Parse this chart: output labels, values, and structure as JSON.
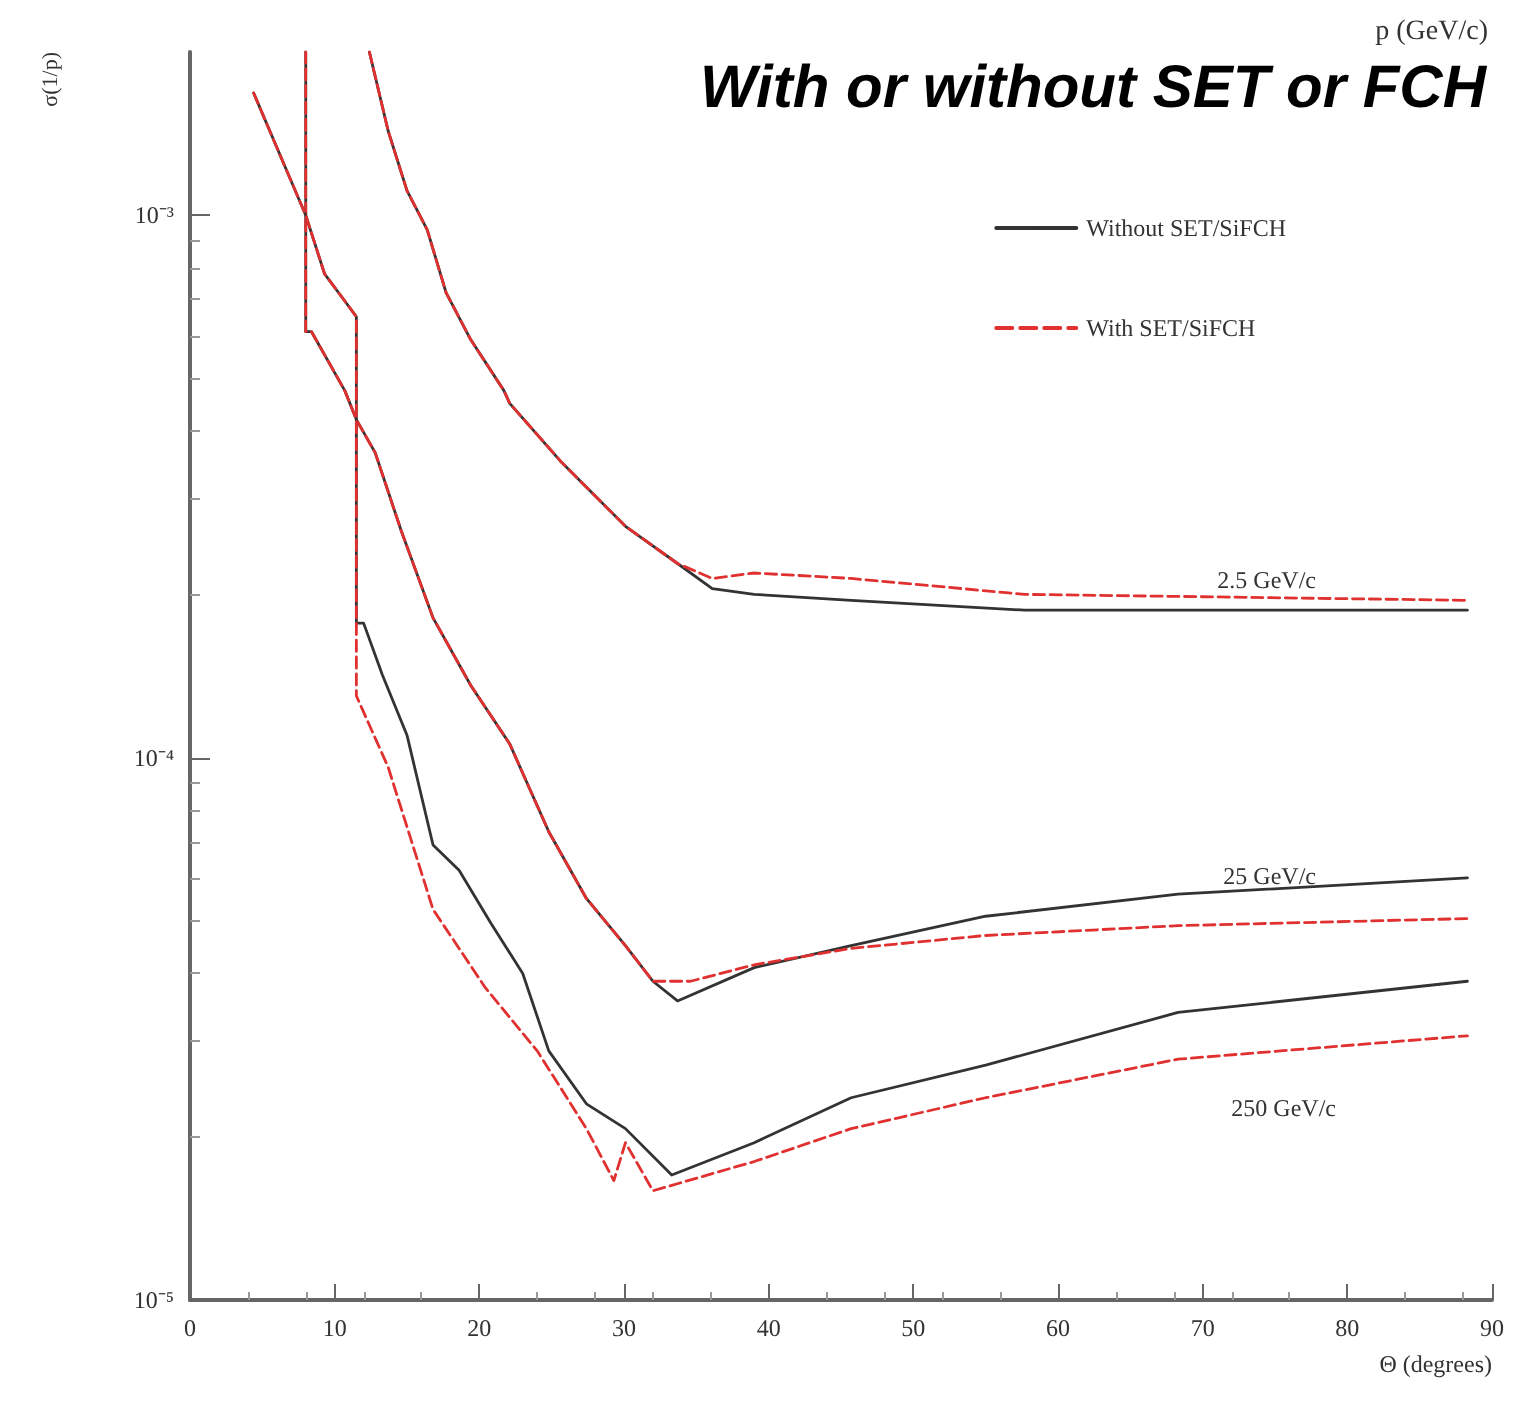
{
  "chart_data": {
    "type": "line",
    "title": "With or without SET or FCH",
    "xlabel": "Θ (degrees)",
    "ylabel": "σ(1/p)",
    "xlim": [
      0,
      90
    ],
    "xticks": [
      0,
      10,
      20,
      30,
      40,
      50,
      60,
      70,
      80,
      90
    ],
    "ylim": [
      1e-05,
      0.002
    ],
    "log": true,
    "yticks": [
      {
        "value": 1e-05,
        "label": "10⁻⁵"
      },
      {
        "value": 0.0001,
        "label": "10⁻⁴"
      },
      {
        "value": 0.001,
        "label": "10⁻³"
      }
    ],
    "grid": false,
    "legend": "top right",
    "marker": "none",
    "annotations": [
      "p (GeV/c)",
      "2.5 GeV/c",
      "25 GeV/c",
      "250 GeV/c"
    ],
    "series": [
      {
        "name": "Without SET/SiFCH",
        "color": "#333333",
        "line_style": "solid",
        "x": [
          12.4,
          13.7,
          15.0,
          16.4,
          17.7,
          19.4,
          21.7,
          22.1,
          25.7,
          30.1,
          33.7,
          36.1,
          39.0,
          45.7,
          57.7,
          88.3
        ],
        "values": [
          0.002,
          0.00143,
          0.00111,
          0.00094,
          0.00072,
          0.00059,
          0.000475,
          0.00045,
          0.00035,
          0.000267,
          0.000228,
          0.000205,
          0.0002,
          0.000195,
          0.000187,
          0.000187
        ]
      },
      {
        "name": "With SET/SiFCH",
        "color": "#e03030",
        "line_style": "dashed",
        "x": [
          12.4,
          13.7,
          15.0,
          16.4,
          17.7,
          19.4,
          21.7,
          22.1,
          25.7,
          30.1,
          33.7,
          36.1,
          39.0,
          45.7,
          57.7,
          88.3
        ],
        "values": [
          0.002,
          0.00143,
          0.00111,
          0.00094,
          0.00072,
          0.00059,
          0.000475,
          0.00045,
          0.00035,
          0.000267,
          0.000228,
          0.000214,
          0.000219,
          0.000214,
          0.0002,
          0.000195
        ]
      },
      {
        "color": "#333333",
        "line_style": "solid",
        "x": [
          8.0,
          8.0,
          8.4,
          10.7,
          11.5,
          12.8,
          14.6,
          16.8,
          19.4,
          22.1,
          24.8,
          27.4,
          30.1,
          32.0,
          33.7,
          39.0,
          45.7,
          55.0,
          68.3,
          88.3
        ],
        "values": [
          0.002,
          0.00061,
          0.00061,
          0.000475,
          0.00042,
          0.000365,
          0.000262,
          0.000181,
          0.000136,
          0.000106,
          7.3e-05,
          5.5e-05,
          4.5e-05,
          3.87e-05,
          3.56e-05,
          4.1e-05,
          4.5e-05,
          5.1e-05,
          5.6e-05,
          6e-05
        ]
      },
      {
        "color": "#e03030",
        "line_style": "dashed",
        "x": [
          8.0,
          8.0,
          8.4,
          10.7,
          11.5,
          12.8,
          14.6,
          16.8,
          19.4,
          22.1,
          24.8,
          27.4,
          30.1,
          32.0,
          34.6,
          39.0,
          45.7,
          55.0,
          68.3,
          88.3
        ],
        "values": [
          0.002,
          0.00061,
          0.00061,
          0.000475,
          0.00042,
          0.000365,
          0.000262,
          0.000181,
          0.000136,
          0.000106,
          7.3e-05,
          5.5e-05,
          4.5e-05,
          3.87e-05,
          3.87e-05,
          4.15e-05,
          4.45e-05,
          4.7e-05,
          4.9e-05,
          5.05e-05
        ]
      },
      {
        "color": "#333333",
        "line_style": "solid",
        "x": [
          4.4,
          8.0,
          9.3,
          10.7,
          11.5,
          11.5,
          12.0,
          13.3,
          15.0,
          16.8,
          18.6,
          20.8,
          23.0,
          24.8,
          27.4,
          30.1,
          33.3,
          39.0,
          45.7,
          55.0,
          68.3,
          88.3
        ],
        "values": [
          0.00168,
          0.001,
          0.00078,
          0.000695,
          0.00065,
          0.000177,
          0.000177,
          0.000142,
          0.00011,
          6.9e-05,
          6.2e-05,
          4.95e-05,
          4e-05,
          2.88e-05,
          2.3e-05,
          2.07e-05,
          1.7e-05,
          1.95e-05,
          2.36e-05,
          2.71e-05,
          3.39e-05,
          3.87e-05
        ]
      },
      {
        "color": "#e03030",
        "line_style": "dashed",
        "x": [
          4.4,
          8.0,
          9.3,
          10.7,
          11.5,
          11.5,
          13.7,
          16.8,
          20.4,
          24.0,
          27.4,
          29.3,
          30.1,
          32.0,
          39.0,
          45.7,
          55.0,
          68.3,
          88.3
        ],
        "values": [
          0.00168,
          0.001,
          0.00078,
          0.000695,
          0.00065,
          0.00013,
          9.6e-05,
          5.25e-05,
          3.77e-05,
          2.88e-05,
          2.07e-05,
          1.66e-05,
          1.95e-05,
          1.59e-05,
          1.8e-05,
          2.07e-05,
          2.36e-05,
          2.78e-05,
          3.07e-05
        ]
      }
    ]
  }
}
